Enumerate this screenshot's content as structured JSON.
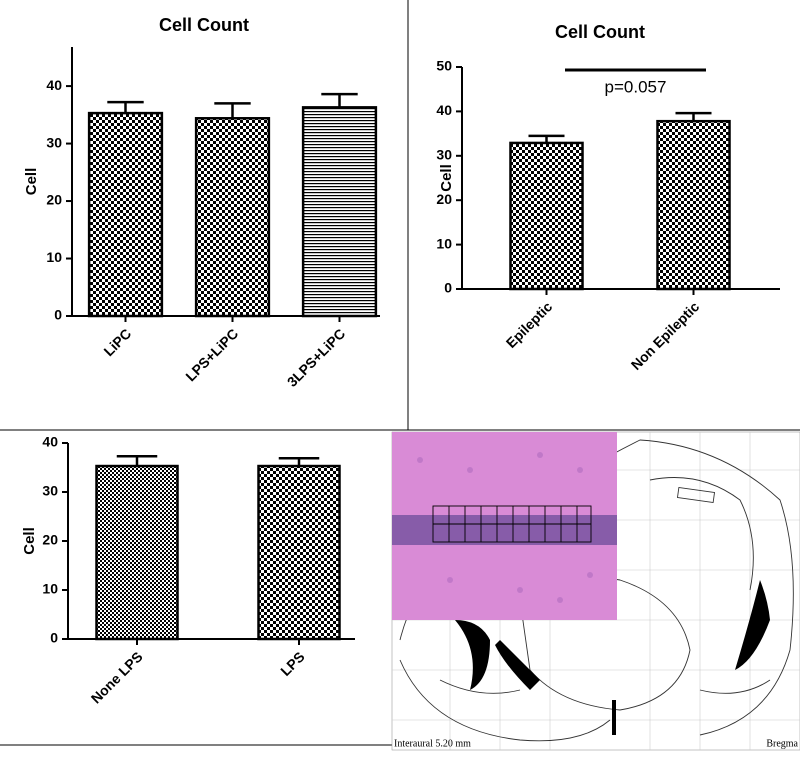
{
  "chart_data": [
    {
      "type": "bar",
      "title": "Cell Count",
      "y_label": "Cell",
      "categories": [
        "LiPC",
        "LPS+LiPC",
        "3LPS+LiPC"
      ],
      "values": [
        35.3,
        34.4,
        36.3
      ],
      "errors": [
        1.9,
        2.6,
        2.3
      ],
      "patterns": [
        "checker",
        "checker",
        "hlines"
      ],
      "color": "#000000",
      "ylim": [
        0,
        46.8
      ],
      "yticks": [
        0,
        10,
        20,
        30,
        40
      ],
      "grid": false
    },
    {
      "type": "bar",
      "title": "Cell Count",
      "y_label": "Cell",
      "categories": [
        "Epileptic",
        "Non Epileptic"
      ],
      "values": [
        32.9,
        37.8
      ],
      "errors": [
        1.6,
        1.8
      ],
      "patterns": [
        "checker",
        "checker"
      ],
      "color": "#000000",
      "annotation": "p=0.057",
      "ylim": [
        0,
        50
      ],
      "yticks": [
        0,
        10,
        20,
        30,
        40,
        50
      ],
      "grid": false
    },
    {
      "type": "bar",
      "y_label": "Cell",
      "categories": [
        "None LPS",
        "LPS"
      ],
      "values": [
        35.3,
        35.3
      ],
      "errors": [
        2.0,
        1.6
      ],
      "patterns": [
        "checker-fine",
        "checker"
      ],
      "color": "#000000",
      "ylim": [
        0,
        40
      ],
      "yticks": [
        0,
        10,
        20,
        30,
        40
      ],
      "grid": false
    }
  ],
  "atlas": {
    "labels": [
      "Interaural 5.20 mm",
      "Bregma"
    ]
  }
}
